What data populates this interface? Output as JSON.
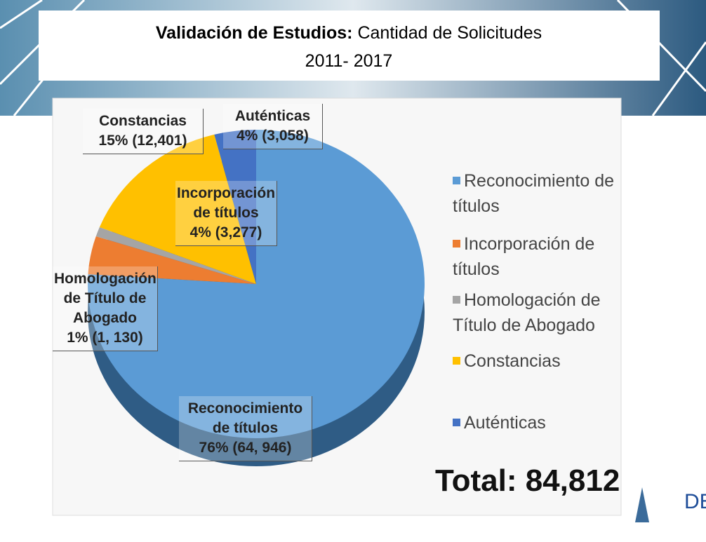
{
  "chart_data": {
    "type": "pie",
    "title": {
      "bold": "Validación de Estudios:",
      "normal": "Cantidad  de Solicitudes"
    },
    "subtitle": "2011- 2017",
    "series": [
      {
        "name": "Reconocimiento de títulos",
        "color": "#5b9bd5",
        "value": 76,
        "value_label": "76%  (64, 946)"
      },
      {
        "name": "Incorporación de títulos",
        "color": "#ed7d31",
        "value": 4,
        "value_label": "4% (3,277)"
      },
      {
        "name": "Homologación de Título de Abogado",
        "color": "#a5a5a5",
        "value": 1,
        "value_label": "1% (1, 130)"
      },
      {
        "name": "Constancias",
        "color": "#ffc000",
        "value": 15,
        "value_label": "15% (12,401)"
      },
      {
        "name": "Auténticas",
        "color": "#4472c4",
        "value": 4,
        "value_label": "4% (3,058)"
      }
    ],
    "annotation": "Total: 84,812",
    "logo": "DES"
  }
}
